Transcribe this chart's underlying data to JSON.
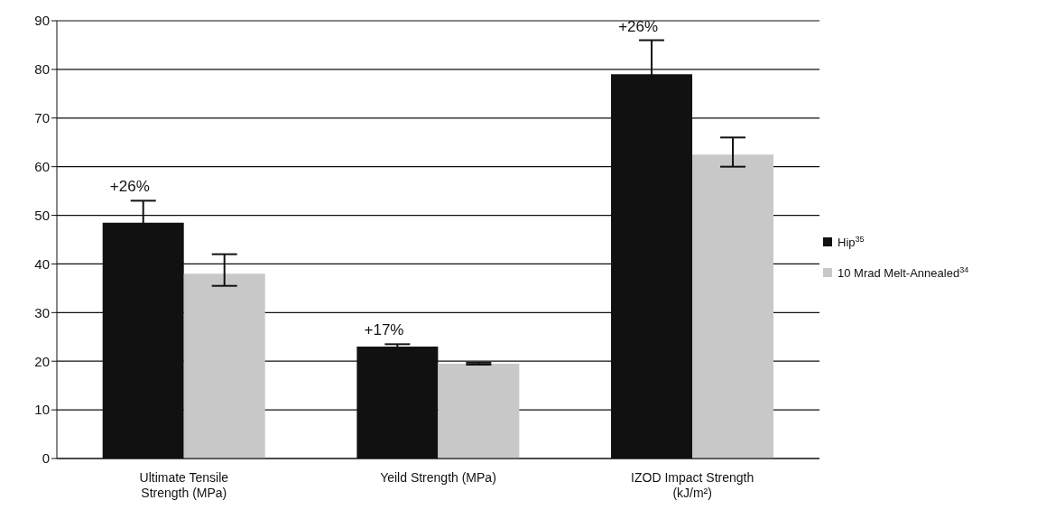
{
  "chart_data": {
    "type": "bar",
    "categories": [
      "Ultimate Tensile Strength (MPa)",
      "Yeild Strength (MPa)",
      "IZOD Impact Strength (kJ/m²)"
    ],
    "series": [
      {
        "name": "Hip$^{35}$",
        "color": "#111111",
        "values": [
          48.5,
          23,
          79
        ],
        "errors": [
          4.5,
          0.5,
          7
        ]
      },
      {
        "name": "10 Mrad Melt-Annealed$^{34}$",
        "color": "#c8c8c8",
        "values": [
          38,
          19.5,
          62.5
        ],
        "errors": [
          [
            35.5,
            42
          ],
          0.2,
          [
            60,
            66
          ]
        ]
      }
    ],
    "ylim": [
      0,
      90
    ],
    "yticks": [
      0,
      10,
      20,
      30,
      40,
      50,
      60,
      70,
      80,
      90
    ],
    "grid": "y",
    "legend": "right",
    "annotations": [
      "+26%",
      "+17%",
      "+26%"
    ]
  }
}
